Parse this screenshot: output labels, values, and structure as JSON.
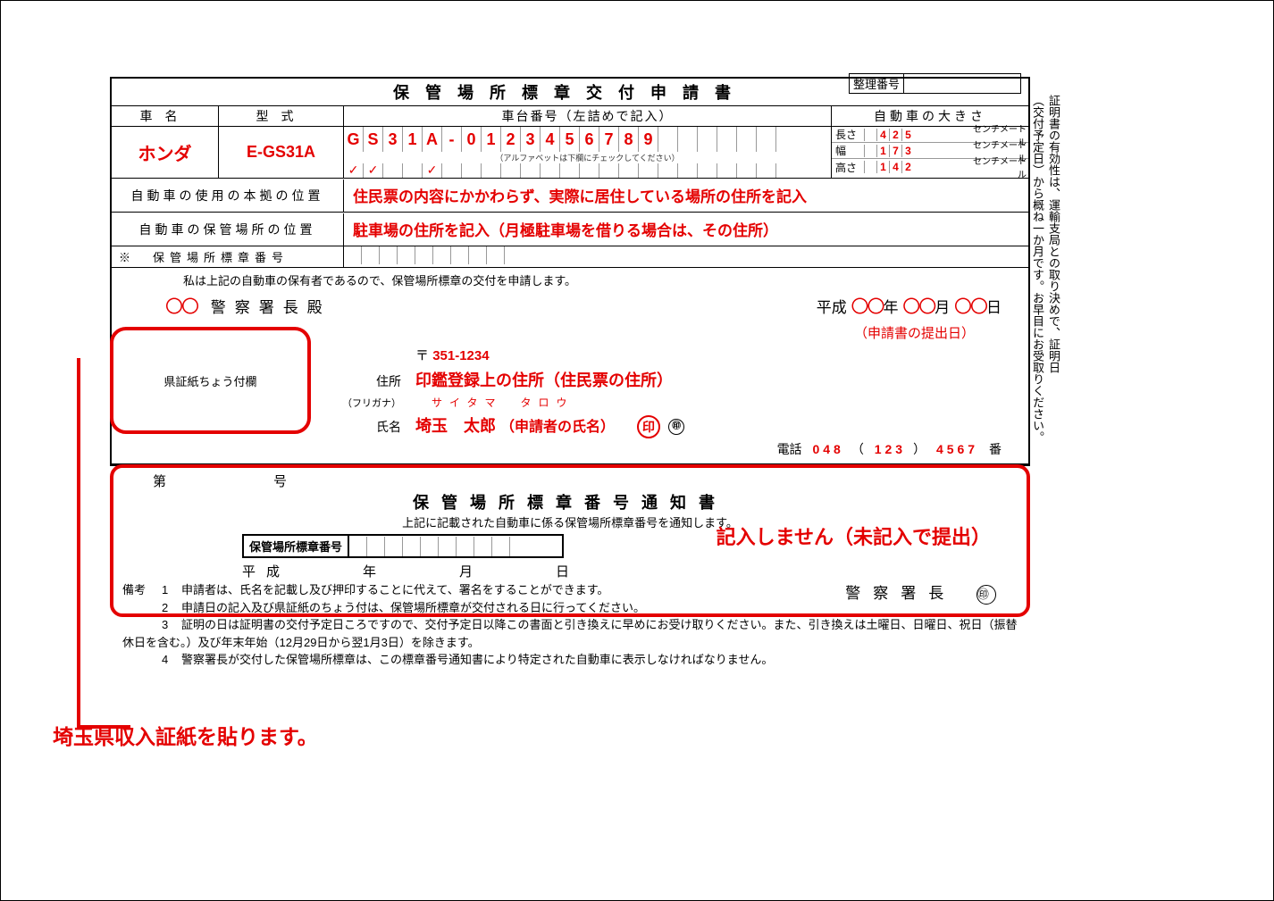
{
  "header": {
    "seiri_label": "整理番号",
    "title": "保管場所標章交付申請書"
  },
  "columns": {
    "car_name": "車名",
    "type": "型式",
    "vin": "車台番号（左詰めで記入）",
    "size": "自動車の大きさ"
  },
  "values": {
    "car_name": "ホンダ",
    "type": "E-GS31A",
    "vin": "GS31A-0123456789",
    "vin_note": "（アルファベットは下欄にチェックしてください）",
    "checks": [
      "✓",
      "✓",
      "",
      "",
      "✓",
      "",
      "",
      "",
      "",
      "",
      "",
      "",
      "",
      "",
      "",
      "",
      ""
    ],
    "size_rows": [
      {
        "label": "長さ",
        "digits": [
          "",
          "4",
          "2",
          "5"
        ],
        "unit": "センチメートル"
      },
      {
        "label": "幅",
        "digits": [
          "",
          "1",
          "7",
          "3"
        ],
        "unit": "センチメートル"
      },
      {
        "label": "高さ",
        "digits": [
          "",
          "1",
          "4",
          "2"
        ],
        "unit": "センチメートル"
      }
    ]
  },
  "locations": {
    "use_label": "自動車の使用の本拠の位置",
    "use_value": "住民票の内容にかかわらず、実際に居住している場所の住所を記入",
    "store_label": "自動車の保管場所の位置",
    "store_value": "駐車場の住所を記入（月極駐車場を借りる場合は、その住所）",
    "sticker_label": "※　保管場所標章番号"
  },
  "declaration": "私は上記の自動車の保有者であるので、保管場所標章の交付を申請します。",
  "police": {
    "circles": "〇〇",
    "label": "警察署長殿",
    "era": "平成",
    "y": "年",
    "m": "月",
    "d": "日",
    "date_note": "（申請書の提出日）"
  },
  "stamp_area_label": "県証紙ちょう付欄",
  "applicant": {
    "postal_mark": "〒",
    "postal": "351-1234",
    "addr_label": "住所",
    "addr_value": "印鑑登録上の住所（住民票の住所）",
    "furigana_label": "（フリガナ）",
    "furigana": "サイタマ　タロウ",
    "name_label": "氏名",
    "name_value": "埼玉　太郎",
    "name_note": "（申請者の氏名）",
    "seal": "印",
    "seal2": "㊞",
    "tel_label": "電話",
    "tel_area": "048",
    "tel_mid": "123",
    "tel_last": "4567",
    "tel_suffix": "番"
  },
  "notice": {
    "dai": "第",
    "go": "号",
    "title": "保管場所標章番号通知書",
    "sub": "上記に記載された自動車に係る保管場所標章番号を通知します。",
    "red": "記入しません（未記入で提出）",
    "num_label": "保管場所標章番号",
    "date": "平成　　　年　　　月　　　日",
    "police": "警察署長",
    "seal": "㊞"
  },
  "remarks": {
    "header": "備考",
    "items": [
      "申請者は、氏名を記載し及び押印することに代えて、署名をすることができます。",
      "申請日の記入及び県証紙のちょう付は、保管場所標章が交付される日に行ってください。",
      "証明の日は証明書の交付予定日ころですので、交付予定日以降この書面と引き換えに早めにお受け取りください。また、引き換えは土曜日、日曜日、祝日（振替休日を含む。）及び年末年始（12月29日から翌1月3日）を除きます。",
      "警察署長が交付した保管場所標章は、この標章番号通知書により特定された自動車に表示しなければなりません。"
    ]
  },
  "callout": "埼玉県収入証紙を貼ります。",
  "side_note_1": "証明書の有効性は、運輸支局との取り決めで、証明日",
  "side_note_2": "（交付予定日）から概ね一か月です。お早目にお受取りください。"
}
